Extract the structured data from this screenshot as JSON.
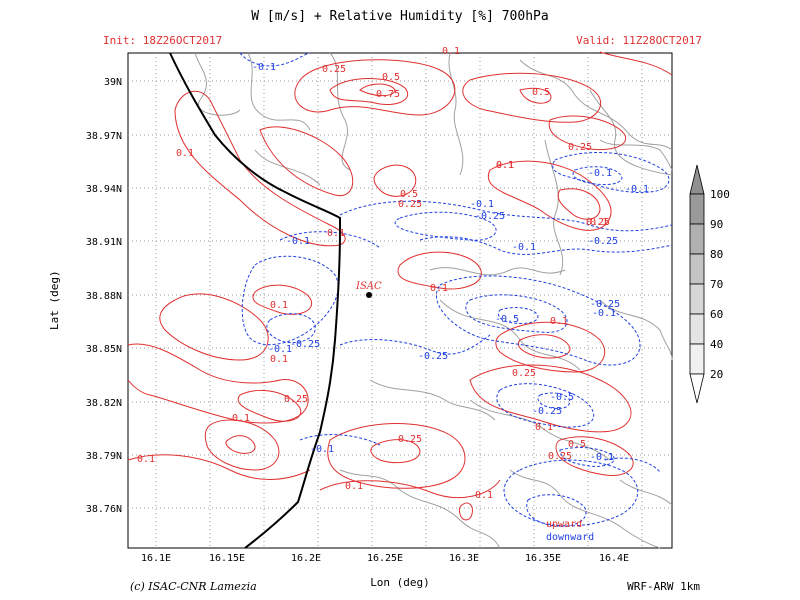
{
  "header": {
    "title": "W [m/s] + Relative Humidity [%] 700hPa",
    "init": "Init: 18Z26OCT2017",
    "valid": "Valid: 11Z28OCT2017"
  },
  "footer": {
    "credit": "(c) ISAC-CNR Lamezia",
    "model": "WRF-ARW 1km"
  },
  "axes": {
    "xlabel": "Lon (deg)",
    "ylabel": "Lat (deg)",
    "x_ticks": [
      "16.1E",
      "16.15E",
      "16.2E",
      "16.25E",
      "16.3E",
      "16.35E",
      "16.4E"
    ],
    "y_ticks": [
      "39N",
      "38.97N",
      "38.94N",
      "38.91N",
      "38.88N",
      "38.85N",
      "38.82N",
      "38.79N",
      "38.76N"
    ]
  },
  "station": {
    "label": "ISAC"
  },
  "legend_text": {
    "upward": "upward",
    "downward": "downward"
  },
  "colorbar": {
    "levels": [
      "100",
      "90",
      "80",
      "70",
      "60",
      "40",
      "20"
    ]
  },
  "contour_labels": {
    "positive": [
      "0.25",
      "0.5",
      "0.75",
      "0.1",
      "0.5",
      "0.5",
      "0.25",
      "0.1",
      "0.25",
      "0.1",
      "0.1",
      "0.1",
      "0.1",
      "0.1",
      "0.25",
      "0.25",
      "0.1",
      "0.1",
      "0.25",
      "0.1",
      "0.1",
      "0.5",
      "0.1",
      "0.25",
      "0.1",
      "0.1",
      "0.25",
      "0.1"
    ],
    "negative": [
      "-0.1",
      "-0.1",
      "-0.1",
      "-0.25",
      "-0.1",
      "-0.25",
      "-0.1",
      "-0.25",
      "-0.5",
      "-0.1",
      "-0.25",
      "-0.5",
      "-0.1",
      "-0.25",
      "-0.25",
      "-0.1",
      "-0.1",
      "-0.1"
    ]
  },
  "colors": {
    "upward": "#e03030",
    "downward": "#2040e0",
    "terrain": "#a0a0a0",
    "coast": "#000000",
    "grid": "#9a9a9a"
  }
}
